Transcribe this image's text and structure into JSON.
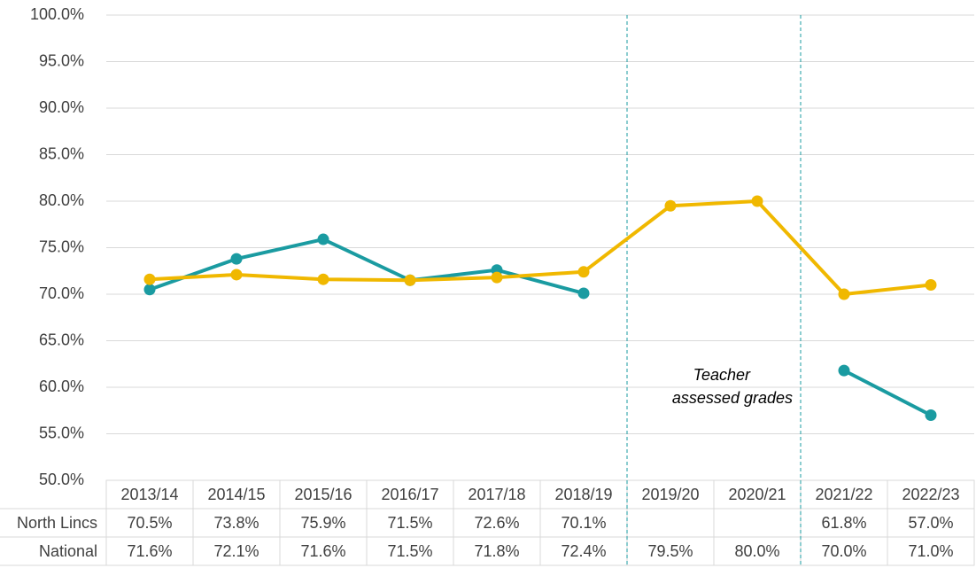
{
  "chart_data": {
    "type": "line",
    "categories": [
      "2013/14",
      "2014/15",
      "2015/16",
      "2016/17",
      "2017/18",
      "2018/19",
      "2019/20",
      "2020/21",
      "2021/22",
      "2022/23"
    ],
    "series": [
      {
        "name": "North Lincs",
        "color": "#1a9ba1",
        "values": [
          70.5,
          73.8,
          75.9,
          71.5,
          72.6,
          70.1,
          null,
          null,
          61.8,
          57.0
        ],
        "value_labels": [
          "70.5%",
          "73.8%",
          "75.9%",
          "71.5%",
          "72.6%",
          "70.1%",
          null,
          null,
          "61.8%",
          "57.0%"
        ]
      },
      {
        "name": "National",
        "color": "#f0b800",
        "values": [
          71.6,
          72.1,
          71.6,
          71.5,
          71.8,
          72.4,
          79.5,
          80.0,
          70.0,
          71.0
        ],
        "value_labels": [
          "71.6%",
          "72.1%",
          "71.6%",
          "71.5%",
          "71.8%",
          "72.4%",
          "79.5%",
          "80.0%",
          "70.0%",
          "71.0%"
        ]
      }
    ],
    "ylim": [
      50,
      100
    ],
    "yticks": [
      {
        "value": 50,
        "label": "50.0%"
      },
      {
        "value": 55,
        "label": "55.0%"
      },
      {
        "value": 60,
        "label": "60.0%"
      },
      {
        "value": 65,
        "label": "65.0%"
      },
      {
        "value": 70,
        "label": "70.0%"
      },
      {
        "value": 75,
        "label": "75.0%"
      },
      {
        "value": 80,
        "label": "80.0%"
      },
      {
        "value": 85,
        "label": "85.0%"
      },
      {
        "value": 90,
        "label": "90.0%"
      },
      {
        "value": 95,
        "label": "95.0%"
      },
      {
        "value": 100,
        "label": "100.0%"
      }
    ],
    "grid": true,
    "annotation": [
      "Teacher",
      "assessed grades"
    ]
  }
}
